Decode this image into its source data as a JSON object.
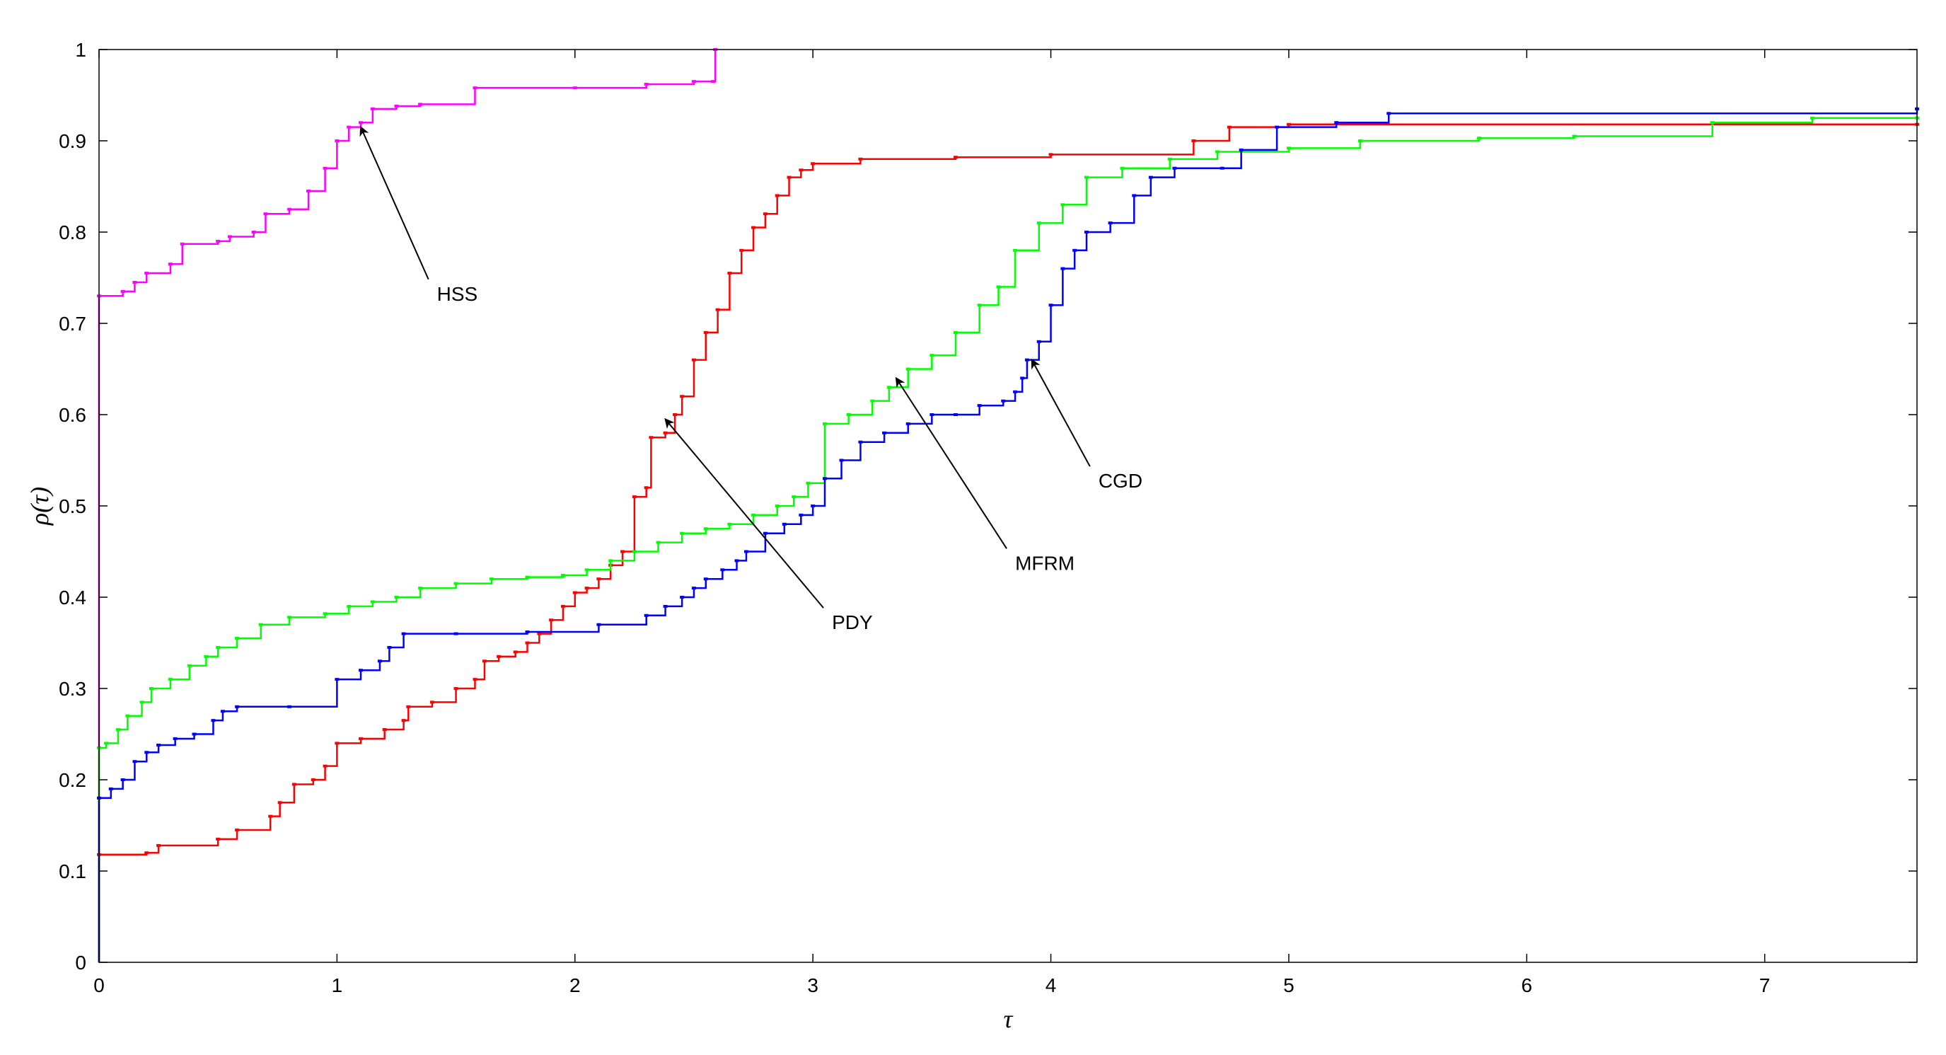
{
  "chart_data": {
    "type": "line",
    "step": true,
    "xlabel": "τ",
    "ylabel": "ρ(τ)",
    "xlim": [
      0,
      7.64
    ],
    "ylim": [
      0,
      1
    ],
    "xticks": [
      0,
      1,
      2,
      3,
      4,
      5,
      6,
      7
    ],
    "yticks": [
      0,
      0.1,
      0.2,
      0.3,
      0.4,
      0.5,
      0.6,
      0.7,
      0.8,
      0.9,
      1
    ],
    "grid": false,
    "colors": {
      "HSS": "#ff00ff",
      "PDY": "#ff0000",
      "MFRM": "#00ff00",
      "CGD": "#0000ff"
    },
    "series": [
      {
        "name": "HSS",
        "color": "#ff00ff",
        "x": [
          0,
          0,
          0.1,
          0.15,
          0.2,
          0.3,
          0.35,
          0.5,
          0.55,
          0.65,
          0.7,
          0.8,
          0.88,
          0.95,
          1.0,
          1.05,
          1.1,
          1.15,
          1.25,
          1.35,
          1.58,
          2.0,
          2.3,
          2.5,
          2.58,
          2.59
        ],
        "y": [
          0,
          0.73,
          0.735,
          0.745,
          0.755,
          0.765,
          0.787,
          0.79,
          0.795,
          0.8,
          0.82,
          0.825,
          0.845,
          0.87,
          0.9,
          0.915,
          0.92,
          0.935,
          0.938,
          0.94,
          0.958,
          0.958,
          0.962,
          0.965,
          0.965,
          1.0
        ]
      },
      {
        "name": "PDY",
        "color": "#ff0000",
        "x": [
          0,
          0,
          0.2,
          0.25,
          0.5,
          0.58,
          0.72,
          0.76,
          0.82,
          0.9,
          0.95,
          1.0,
          1.1,
          1.2,
          1.28,
          1.3,
          1.4,
          1.5,
          1.58,
          1.62,
          1.68,
          1.75,
          1.8,
          1.85,
          1.9,
          1.95,
          2.0,
          2.05,
          2.1,
          2.15,
          2.2,
          2.25,
          2.3,
          2.32,
          2.38,
          2.42,
          2.45,
          2.5,
          2.55,
          2.6,
          2.65,
          2.7,
          2.75,
          2.8,
          2.85,
          2.9,
          2.95,
          3.0,
          3.2,
          3.6,
          4.0,
          4.6,
          4.75,
          5.0,
          7.64
        ],
        "y": [
          0,
          0.118,
          0.12,
          0.128,
          0.135,
          0.145,
          0.16,
          0.175,
          0.195,
          0.2,
          0.215,
          0.24,
          0.245,
          0.255,
          0.265,
          0.28,
          0.285,
          0.3,
          0.31,
          0.33,
          0.335,
          0.34,
          0.35,
          0.36,
          0.375,
          0.39,
          0.405,
          0.41,
          0.42,
          0.435,
          0.45,
          0.51,
          0.52,
          0.575,
          0.58,
          0.6,
          0.62,
          0.66,
          0.69,
          0.715,
          0.755,
          0.78,
          0.805,
          0.82,
          0.84,
          0.86,
          0.868,
          0.875,
          0.88,
          0.882,
          0.885,
          0.9,
          0.915,
          0.918,
          0.918
        ]
      },
      {
        "name": "MFRM",
        "color": "#00ff00",
        "x": [
          0,
          0,
          0.03,
          0.08,
          0.12,
          0.18,
          0.22,
          0.3,
          0.38,
          0.45,
          0.5,
          0.58,
          0.68,
          0.8,
          0.95,
          1.05,
          1.15,
          1.25,
          1.35,
          1.5,
          1.65,
          1.8,
          1.95,
          2.05,
          2.15,
          2.25,
          2.35,
          2.45,
          2.55,
          2.65,
          2.75,
          2.85,
          2.92,
          2.98,
          3.05,
          3.15,
          3.25,
          3.32,
          3.4,
          3.5,
          3.6,
          3.7,
          3.78,
          3.85,
          3.95,
          4.05,
          4.15,
          4.3,
          4.5,
          4.7,
          5.0,
          5.3,
          5.8,
          6.2,
          6.78,
          7.2,
          7.64
        ],
        "y": [
          0,
          0.235,
          0.24,
          0.255,
          0.27,
          0.285,
          0.3,
          0.31,
          0.325,
          0.335,
          0.345,
          0.355,
          0.37,
          0.378,
          0.382,
          0.39,
          0.395,
          0.4,
          0.41,
          0.415,
          0.42,
          0.422,
          0.424,
          0.43,
          0.44,
          0.45,
          0.46,
          0.47,
          0.475,
          0.48,
          0.49,
          0.5,
          0.51,
          0.525,
          0.59,
          0.6,
          0.615,
          0.63,
          0.65,
          0.665,
          0.69,
          0.72,
          0.74,
          0.78,
          0.81,
          0.83,
          0.86,
          0.87,
          0.88,
          0.888,
          0.892,
          0.9,
          0.903,
          0.905,
          0.92,
          0.925,
          0.925
        ]
      },
      {
        "name": "CGD",
        "color": "#0000ff",
        "x": [
          0,
          0,
          0.05,
          0.1,
          0.15,
          0.2,
          0.25,
          0.32,
          0.4,
          0.48,
          0.52,
          0.58,
          0.8,
          1.0,
          1.1,
          1.18,
          1.22,
          1.28,
          1.5,
          1.8,
          2.1,
          2.3,
          2.38,
          2.45,
          2.5,
          2.55,
          2.62,
          2.68,
          2.72,
          2.8,
          2.88,
          2.95,
          3.0,
          3.05,
          3.12,
          3.2,
          3.3,
          3.4,
          3.5,
          3.6,
          3.7,
          3.8,
          3.85,
          3.88,
          3.9,
          3.95,
          4.0,
          4.05,
          4.1,
          4.15,
          4.25,
          4.35,
          4.42,
          4.52,
          4.72,
          4.8,
          4.95,
          5.2,
          5.42,
          7.64
        ],
        "y": [
          0,
          0.18,
          0.19,
          0.2,
          0.22,
          0.23,
          0.238,
          0.245,
          0.25,
          0.265,
          0.275,
          0.28,
          0.28,
          0.31,
          0.32,
          0.33,
          0.345,
          0.36,
          0.36,
          0.362,
          0.37,
          0.38,
          0.39,
          0.4,
          0.41,
          0.42,
          0.43,
          0.44,
          0.45,
          0.47,
          0.48,
          0.49,
          0.5,
          0.53,
          0.55,
          0.57,
          0.58,
          0.59,
          0.6,
          0.6,
          0.61,
          0.615,
          0.625,
          0.64,
          0.66,
          0.68,
          0.72,
          0.76,
          0.78,
          0.8,
          0.81,
          0.84,
          0.86,
          0.87,
          0.87,
          0.89,
          0.915,
          0.92,
          0.93,
          0.935
        ]
      }
    ],
    "annotations": [
      {
        "text": "HSS",
        "label_x": 1.42,
        "label_y": 0.725,
        "arrow_x": 1.1,
        "arrow_y": 0.915
      },
      {
        "text": "PDY",
        "label_x": 3.08,
        "label_y": 0.365,
        "arrow_x": 2.38,
        "arrow_y": 0.595
      },
      {
        "text": "MFRM",
        "label_x": 3.85,
        "label_y": 0.43,
        "arrow_x": 3.35,
        "arrow_y": 0.64
      },
      {
        "text": "CGD",
        "label_x": 4.2,
        "label_y": 0.52,
        "arrow_x": 3.92,
        "arrow_y": 0.66
      }
    ]
  }
}
